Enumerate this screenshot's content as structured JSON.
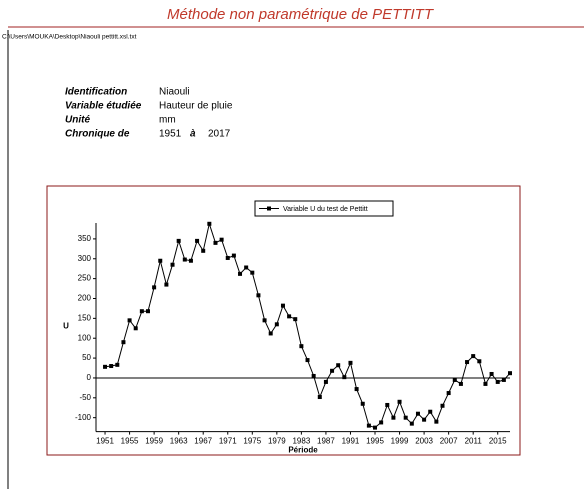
{
  "header": {
    "title": "Méthode non paramétrique de PETTITT",
    "path": "C:\\Users\\MOUKA\\Desktop\\Niaouli pettitt.xsl.txt"
  },
  "info": {
    "rows": [
      {
        "label": "Identification",
        "value": "Niaouli"
      },
      {
        "label": "Variable étudiée",
        "value": "Hauteur de pluie"
      },
      {
        "label": "Unité",
        "value": "mm"
      }
    ],
    "chronique": {
      "label": "Chronique de",
      "start": "1951",
      "sep": "à",
      "end": "2017"
    }
  },
  "chart_data": {
    "type": "line",
    "xlabel": "Période",
    "ylabel": "U",
    "x": [
      1951,
      1952,
      1953,
      1954,
      1955,
      1956,
      1957,
      1958,
      1959,
      1960,
      1961,
      1962,
      1963,
      1964,
      1965,
      1966,
      1967,
      1968,
      1969,
      1970,
      1971,
      1972,
      1973,
      1974,
      1975,
      1976,
      1977,
      1978,
      1979,
      1980,
      1981,
      1982,
      1983,
      1984,
      1985,
      1986,
      1987,
      1988,
      1989,
      1990,
      1991,
      1992,
      1993,
      1994,
      1995,
      1996,
      1997,
      1998,
      1999,
      2000,
      2001,
      2002,
      2003,
      2004,
      2005,
      2006,
      2007,
      2008,
      2009,
      2010,
      2011,
      2012,
      2013,
      2014,
      2015,
      2016,
      2017
    ],
    "series": [
      {
        "name": "Variable U du test de Pettitt",
        "color": "#000000",
        "values": [
          28,
          30,
          33,
          90,
          145,
          125,
          168,
          168,
          228,
          295,
          235,
          285,
          345,
          298,
          295,
          345,
          320,
          388,
          340,
          348,
          302,
          308,
          262,
          278,
          265,
          208,
          145,
          112,
          135,
          182,
          155,
          148,
          80,
          45,
          5,
          -48,
          -10,
          18,
          32,
          2,
          38,
          -28,
          -65,
          -120,
          -125,
          -112,
          -68,
          -100,
          -60,
          -100,
          -115,
          -90,
          -105,
          -85,
          -110,
          -70,
          -38,
          -5,
          -15,
          40,
          55,
          42,
          -15,
          10,
          -10,
          -5,
          12
        ]
      }
    ],
    "xlim": [
      1950,
      2017
    ],
    "ylim": [
      -130,
      390
    ],
    "xticks": [
      1951,
      1955,
      1959,
      1963,
      1967,
      1971,
      1975,
      1979,
      1983,
      1987,
      1991,
      1995,
      1999,
      2003,
      2007,
      2011,
      2015
    ],
    "yticks": [
      -100,
      -50,
      0,
      50,
      100,
      150,
      200,
      250,
      300,
      350
    ],
    "legend": "top"
  }
}
